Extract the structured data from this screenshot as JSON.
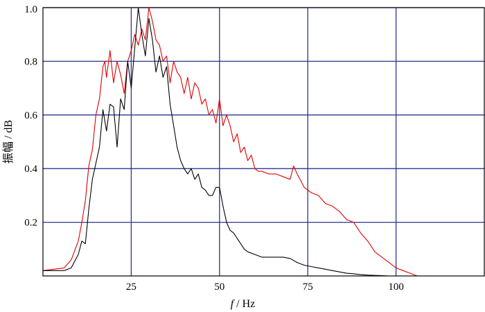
{
  "chart_data": {
    "type": "line",
    "title": "",
    "xlabel_italic": "f",
    "xlabel_rest": " / Hz",
    "ylabel": "振幅 / dB",
    "xlim": [
      0,
      125
    ],
    "ylim": [
      0,
      1.0
    ],
    "x_ticks": [
      25,
      50,
      75,
      100
    ],
    "x_tick_labels": [
      "25",
      "50",
      "75",
      "100"
    ],
    "y_ticks": [
      0.2,
      0.4,
      0.6,
      0.8,
      1.0
    ],
    "y_tick_labels": [
      "0.2",
      "0.4",
      "0.6",
      "0.8",
      "1.0"
    ],
    "grid": true,
    "legend": "none",
    "series": [
      {
        "color": "#e00000",
        "x": [
          0,
          6,
          8,
          10,
          11,
          12,
          13,
          14,
          15,
          16,
          17,
          17.5,
          18,
          19,
          20,
          21,
          22,
          23,
          24,
          25,
          26,
          27,
          28,
          29,
          30,
          31,
          32,
          33,
          34,
          35,
          36,
          37,
          38,
          39,
          40,
          41,
          42,
          43,
          44,
          45,
          46,
          47,
          48,
          49,
          50,
          51,
          52,
          53,
          54,
          55,
          56,
          57,
          58,
          59,
          60,
          61,
          62,
          64,
          66,
          68,
          70,
          71,
          72,
          74,
          76,
          78,
          80,
          82,
          84,
          86,
          88,
          90,
          92,
          94,
          96,
          98,
          100,
          102,
          104,
          106
        ],
        "values": [
          0.02,
          0.03,
          0.06,
          0.13,
          0.2,
          0.28,
          0.41,
          0.47,
          0.6,
          0.66,
          0.78,
          0.8,
          0.74,
          0.84,
          0.72,
          0.8,
          0.75,
          0.68,
          0.8,
          0.84,
          0.9,
          0.86,
          0.92,
          0.88,
          1.0,
          0.95,
          0.88,
          0.86,
          0.8,
          0.82,
          0.72,
          0.8,
          0.76,
          0.74,
          0.68,
          0.74,
          0.66,
          0.72,
          0.7,
          0.64,
          0.66,
          0.6,
          0.62,
          0.57,
          0.66,
          0.56,
          0.6,
          0.56,
          0.5,
          0.53,
          0.46,
          0.48,
          0.43,
          0.45,
          0.4,
          0.39,
          0.39,
          0.38,
          0.38,
          0.37,
          0.36,
          0.41,
          0.38,
          0.33,
          0.31,
          0.3,
          0.27,
          0.26,
          0.24,
          0.21,
          0.2,
          0.16,
          0.13,
          0.09,
          0.07,
          0.05,
          0.03,
          0.02,
          0.01,
          0.0
        ]
      },
      {
        "color": "#000000",
        "x": [
          0,
          6,
          8,
          10,
          11,
          12,
          13,
          14,
          15,
          16,
          17,
          18,
          19,
          20,
          21,
          22,
          23,
          24,
          25,
          26,
          27,
          28,
          29,
          30,
          31,
          32,
          33,
          34,
          35,
          36,
          37,
          38,
          39,
          40,
          41,
          42,
          43,
          44,
          45,
          46,
          47,
          48,
          49,
          50,
          51,
          52,
          53,
          54,
          55,
          56,
          57,
          58,
          60,
          62,
          64,
          66,
          68,
          70,
          72,
          74,
          76,
          78,
          80,
          82,
          84,
          86,
          88,
          90,
          92,
          94,
          96,
          98,
          100
        ],
        "values": [
          0.02,
          0.02,
          0.03,
          0.08,
          0.13,
          0.12,
          0.25,
          0.36,
          0.42,
          0.48,
          0.62,
          0.54,
          0.64,
          0.63,
          0.48,
          0.66,
          0.62,
          0.8,
          0.7,
          0.85,
          1.0,
          0.9,
          0.82,
          0.96,
          0.88,
          0.76,
          0.82,
          0.74,
          0.78,
          0.64,
          0.56,
          0.48,
          0.43,
          0.4,
          0.38,
          0.4,
          0.36,
          0.38,
          0.33,
          0.32,
          0.3,
          0.3,
          0.33,
          0.33,
          0.26,
          0.2,
          0.17,
          0.16,
          0.14,
          0.12,
          0.1,
          0.09,
          0.08,
          0.07,
          0.07,
          0.07,
          0.07,
          0.065,
          0.05,
          0.04,
          0.035,
          0.03,
          0.025,
          0.02,
          0.015,
          0.01,
          0.008,
          0.005,
          0.003,
          0.002,
          0.001,
          0.0,
          0.0
        ]
      }
    ]
  }
}
